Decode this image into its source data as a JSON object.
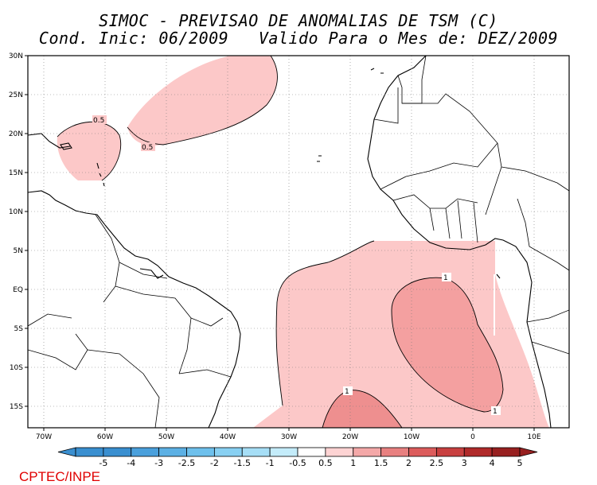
{
  "title": {
    "line1": "SIMOC - PREVISAO DE ANOMALIAS DE TSM (C)",
    "line2": "Cond. Inic: 06/2009   Valido Para o Mes de: DEZ/2009"
  },
  "axes": {
    "lat_ticks": [
      "30N",
      "25N",
      "20N",
      "15N",
      "10N",
      "5N",
      "EQ",
      "5S",
      "10S",
      "15S"
    ],
    "lon_ticks": [
      "70W",
      "60W",
      "50W",
      "40W",
      "30W",
      "20W",
      "10W",
      "0",
      "10E"
    ]
  },
  "contour_labels": [
    "0.5",
    "0.5",
    "1",
    "1",
    "1"
  ],
  "colorbar": {
    "labels": [
      "-5",
      "-4",
      "-3",
      "-2.5",
      "-2",
      "-1.5",
      "-1",
      "-0.5",
      "0.5",
      "1",
      "1.5",
      "2",
      "2.5",
      "3",
      "4",
      "5"
    ],
    "colors": [
      "#3a8fd0",
      "#3a8fd0",
      "#4aa0dc",
      "#5cb0e4",
      "#6ec0ec",
      "#88d0f2",
      "#a6def6",
      "#c4ecfa",
      "#ffffff",
      "#fdd3d3",
      "#f4a8a8",
      "#e88080",
      "#dc5c5c",
      "#c84040",
      "#b02a2a",
      "#982020"
    ]
  },
  "credit": "CPTEC/INPE"
}
